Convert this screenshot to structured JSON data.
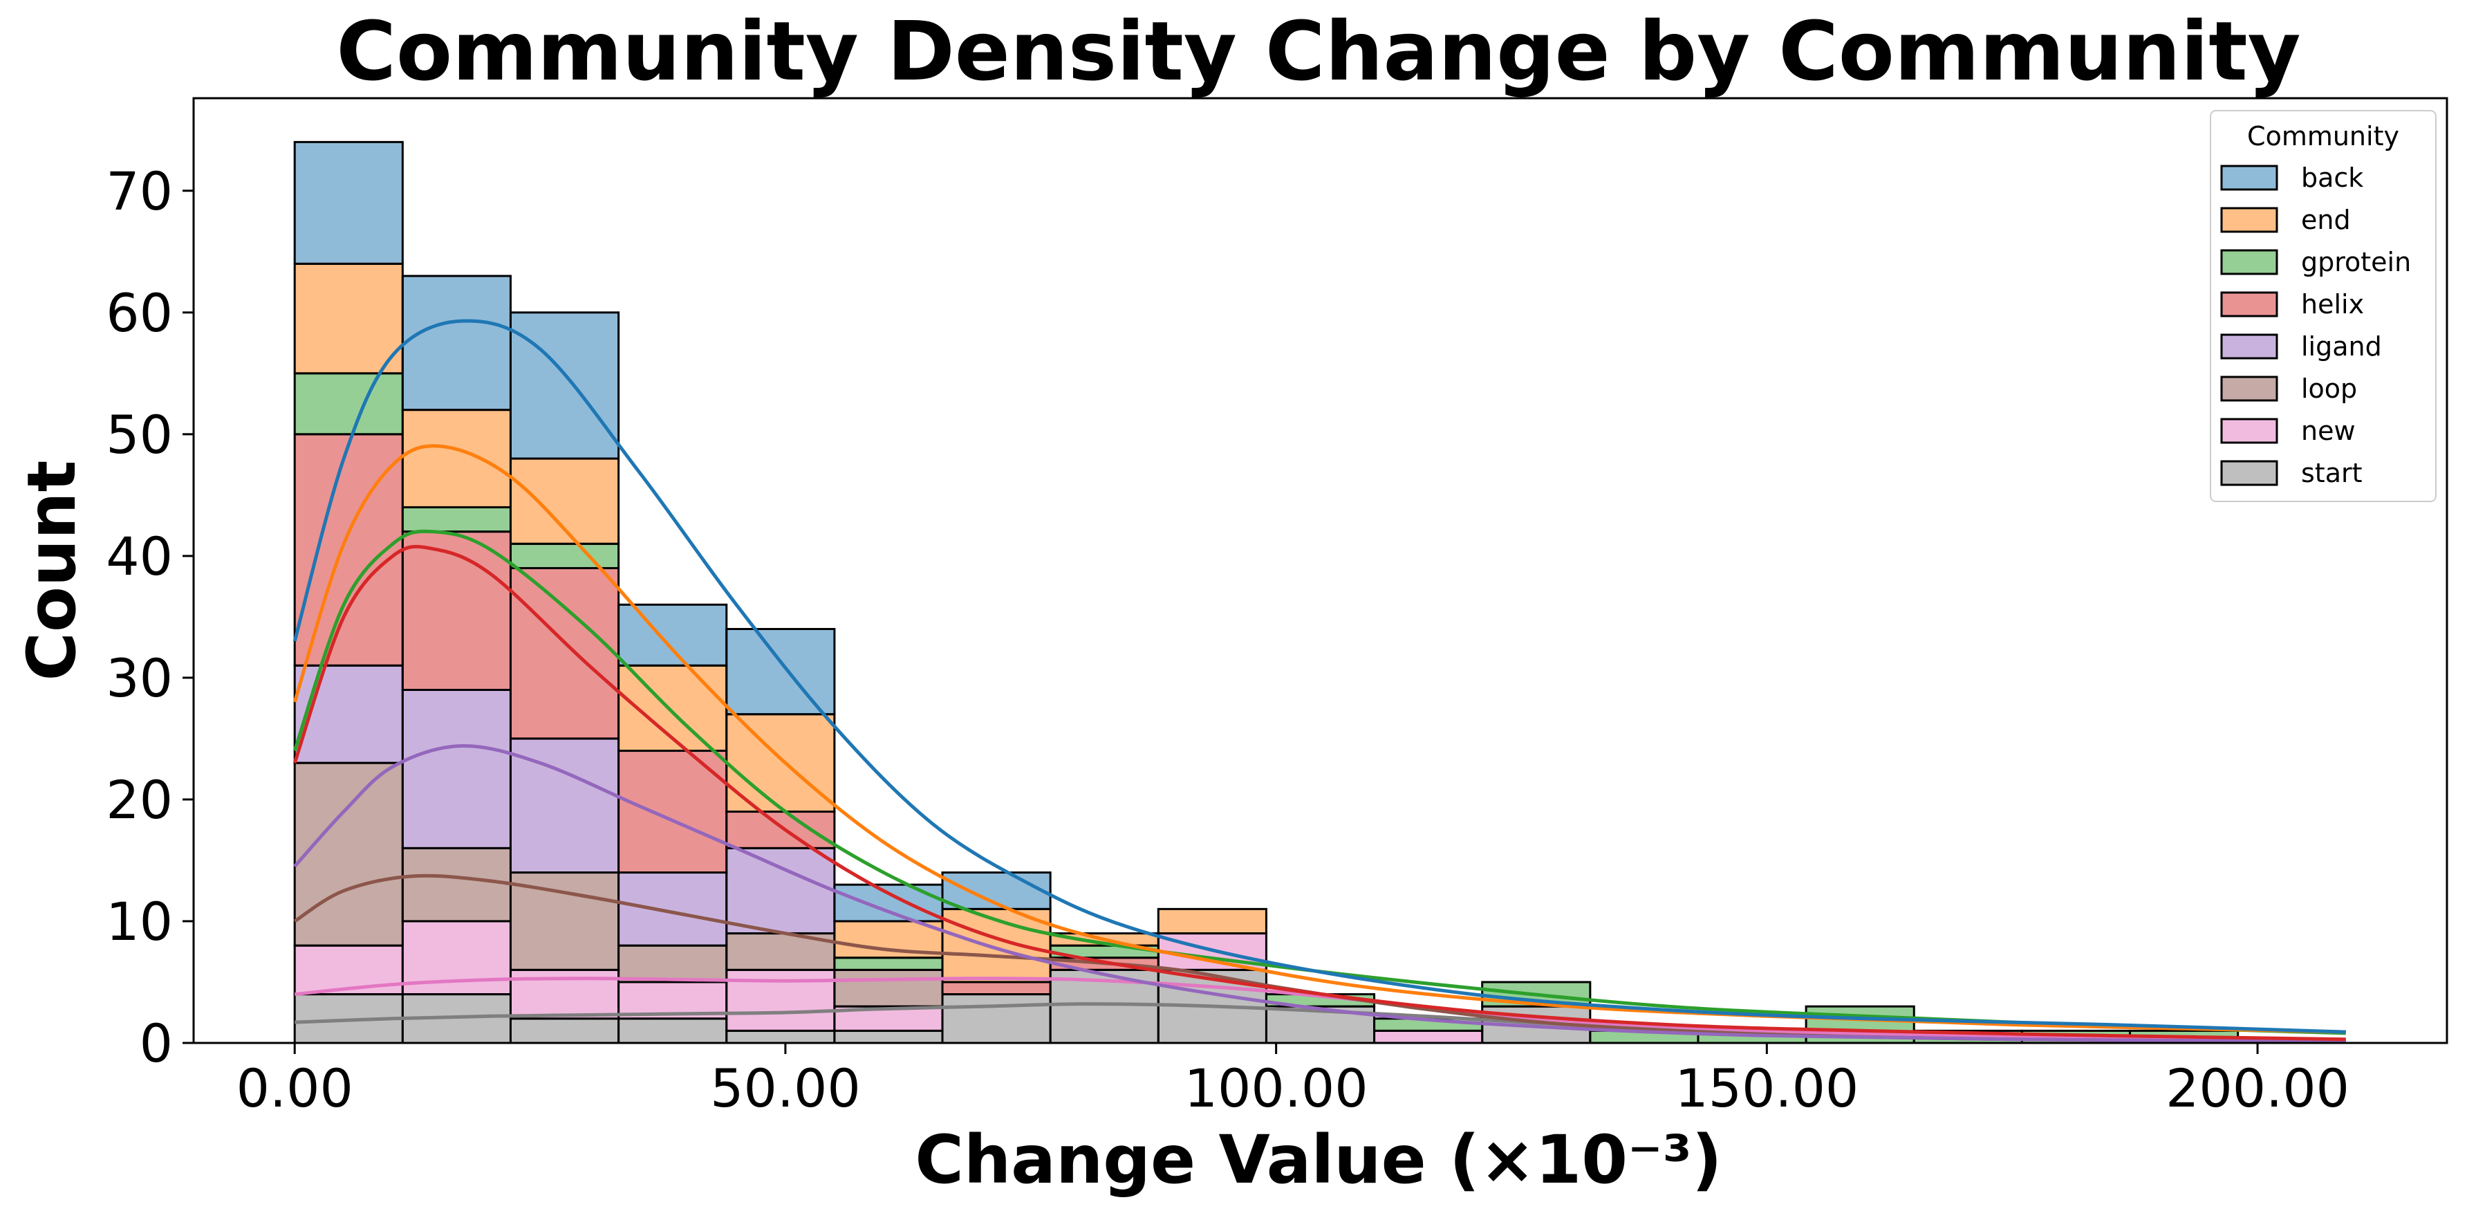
{
  "chart_data": {
    "type": "bar",
    "stacked": true,
    "kde": true,
    "title": "Community Density Change by Community",
    "xlabel": "Change Value (×10⁻³)",
    "ylabel": "Count",
    "xlim": [
      -10.3,
      219.3
    ],
    "ylim": [
      0,
      77.6
    ],
    "xticks": [
      0,
      50,
      100,
      150,
      200
    ],
    "xtick_labels": [
      "0.00",
      "50.00",
      "100.00",
      "150.00",
      "200.00"
    ],
    "yticks": [
      0,
      10,
      20,
      30,
      40,
      50,
      60,
      70
    ],
    "ytick_labels": [
      "0",
      "10",
      "20",
      "30",
      "40",
      "50",
      "60",
      "70"
    ],
    "bin_edges": [
      0,
      11,
      22,
      33,
      44,
      55,
      66,
      77,
      88,
      99,
      110,
      121,
      132,
      143,
      154,
      165,
      176,
      187,
      198,
      209
    ],
    "legend": {
      "title": "Community",
      "position": "top-right"
    },
    "series": [
      {
        "name": "back",
        "color": "#1f77b4",
        "values": [
          10,
          11,
          12,
          5,
          7,
          3,
          3,
          0,
          0,
          0,
          0,
          0,
          0,
          0,
          0,
          0,
          0,
          0,
          0
        ],
        "kde": [
          [
            0,
            33
          ],
          [
            5,
            48
          ],
          [
            10,
            56.5
          ],
          [
            17,
            59.3
          ],
          [
            25,
            57
          ],
          [
            35,
            47
          ],
          [
            45,
            36
          ],
          [
            55,
            26
          ],
          [
            65,
            18
          ],
          [
            75,
            13
          ],
          [
            85,
            9.5
          ],
          [
            100,
            6.5
          ],
          [
            120,
            4
          ],
          [
            140,
            2.7
          ],
          [
            160,
            2
          ],
          [
            185,
            1.5
          ],
          [
            209,
            0.9
          ]
        ]
      },
      {
        "name": "end",
        "color": "#ff7f0e",
        "values": [
          9,
          8,
          7,
          7,
          8,
          3,
          6,
          1,
          2,
          0,
          0,
          0,
          0,
          0,
          0,
          0,
          0,
          0,
          0
        ],
        "kde": [
          [
            0,
            28
          ],
          [
            5,
            41
          ],
          [
            10,
            47.5
          ],
          [
            15,
            49
          ],
          [
            22,
            46.5
          ],
          [
            30,
            40
          ],
          [
            40,
            31
          ],
          [
            50,
            23
          ],
          [
            60,
            16.5
          ],
          [
            70,
            12
          ],
          [
            80,
            9
          ],
          [
            95,
            6.5
          ],
          [
            110,
            4.5
          ],
          [
            130,
            3
          ],
          [
            150,
            2.2
          ],
          [
            175,
            1.5
          ],
          [
            209,
            0.9
          ]
        ]
      },
      {
        "name": "gprotein",
        "color": "#2ca02c",
        "values": [
          5,
          2,
          2,
          0,
          0,
          1,
          0,
          1,
          0,
          1,
          1,
          2,
          1,
          1,
          3,
          1,
          1,
          1,
          0
        ],
        "kde": [
          [
            0,
            24
          ],
          [
            5,
            36
          ],
          [
            10,
            41
          ],
          [
            14,
            42
          ],
          [
            20,
            40.5
          ],
          [
            30,
            34
          ],
          [
            40,
            26
          ],
          [
            50,
            19
          ],
          [
            60,
            14
          ],
          [
            70,
            10.5
          ],
          [
            80,
            8.5
          ],
          [
            100,
            6.3
          ],
          [
            120,
            4.5
          ],
          [
            140,
            3
          ],
          [
            160,
            2.2
          ],
          [
            185,
            1.4
          ],
          [
            209,
            0.8
          ]
        ]
      },
      {
        "name": "helix",
        "color": "#d62728",
        "values": [
          19,
          13,
          14,
          10,
          3,
          0,
          1,
          1,
          0,
          0,
          0,
          0,
          0,
          0,
          0,
          0,
          0,
          0,
          0
        ],
        "kde": [
          [
            0,
            23
          ],
          [
            5,
            35
          ],
          [
            10,
            40
          ],
          [
            14,
            40.6
          ],
          [
            20,
            38.5
          ],
          [
            30,
            31
          ],
          [
            40,
            24
          ],
          [
            50,
            17.5
          ],
          [
            60,
            12.5
          ],
          [
            70,
            9
          ],
          [
            80,
            7
          ],
          [
            100,
            4.5
          ],
          [
            120,
            2.6
          ],
          [
            140,
            1.5
          ],
          [
            160,
            1
          ],
          [
            185,
            0.6
          ],
          [
            209,
            0.3
          ]
        ]
      },
      {
        "name": "ligand",
        "color": "#9467bd",
        "values": [
          8,
          13,
          11,
          6,
          7,
          0,
          0,
          0,
          0,
          0,
          0,
          0,
          0,
          0,
          0,
          0,
          0,
          0,
          0
        ],
        "kde": [
          [
            0,
            14.5
          ],
          [
            5,
            19
          ],
          [
            10,
            22.7
          ],
          [
            17,
            24.4
          ],
          [
            25,
            23
          ],
          [
            35,
            19.5
          ],
          [
            45,
            16
          ],
          [
            55,
            12.5
          ],
          [
            65,
            9.5
          ],
          [
            75,
            7
          ],
          [
            90,
            4.5
          ],
          [
            110,
            2.3
          ],
          [
            130,
            1.2
          ],
          [
            150,
            0.6
          ],
          [
            175,
            0.3
          ],
          [
            209,
            0.1
          ]
        ]
      },
      {
        "name": "loop",
        "color": "#8c564b",
        "values": [
          15,
          6,
          8,
          3,
          3,
          3,
          0,
          0,
          0,
          0,
          0,
          0,
          0,
          0,
          0,
          0,
          0,
          0,
          0
        ],
        "kde": [
          [
            0,
            10
          ],
          [
            5,
            12.5
          ],
          [
            12,
            13.7
          ],
          [
            20,
            13.3
          ],
          [
            30,
            12
          ],
          [
            40,
            10.5
          ],
          [
            50,
            9
          ],
          [
            60,
            7.7
          ],
          [
            70,
            7.2
          ],
          [
            80,
            6.7
          ],
          [
            90,
            6
          ],
          [
            100,
            4.6
          ],
          [
            115,
            2.8
          ],
          [
            130,
            1.5
          ],
          [
            150,
            0.7
          ],
          [
            175,
            0.3
          ],
          [
            209,
            0.1
          ]
        ]
      },
      {
        "name": "new",
        "color": "#e377c2",
        "values": [
          4,
          6,
          4,
          3,
          5,
          2,
          0,
          0,
          3,
          0,
          1,
          0,
          0,
          0,
          0,
          0,
          0,
          0,
          0
        ],
        "kde": [
          [
            0,
            4
          ],
          [
            10,
            4.8
          ],
          [
            20,
            5.2
          ],
          [
            30,
            5.3
          ],
          [
            40,
            5.2
          ],
          [
            50,
            5.1
          ],
          [
            60,
            5.2
          ],
          [
            70,
            5.3
          ],
          [
            80,
            5.2
          ],
          [
            90,
            4.8
          ],
          [
            100,
            4.2
          ],
          [
            115,
            3
          ],
          [
            130,
            1.8
          ],
          [
            150,
            1
          ],
          [
            175,
            0.5
          ],
          [
            209,
            0.2
          ]
        ]
      },
      {
        "name": "start",
        "color": "#7f7f7f",
        "values": [
          4,
          4,
          2,
          2,
          1,
          1,
          4,
          6,
          6,
          3,
          0,
          3,
          0,
          0,
          0,
          0,
          0,
          0,
          0
        ],
        "kde": [
          [
            0,
            1.7
          ],
          [
            10,
            2
          ],
          [
            20,
            2.2
          ],
          [
            30,
            2.3
          ],
          [
            40,
            2.4
          ],
          [
            50,
            2.5
          ],
          [
            60,
            2.8
          ],
          [
            70,
            3
          ],
          [
            80,
            3.2
          ],
          [
            90,
            3.1
          ],
          [
            100,
            2.8
          ],
          [
            115,
            2.2
          ],
          [
            130,
            1.5
          ],
          [
            150,
            0.9
          ],
          [
            175,
            0.4
          ],
          [
            209,
            0.15
          ]
        ]
      }
    ]
  }
}
